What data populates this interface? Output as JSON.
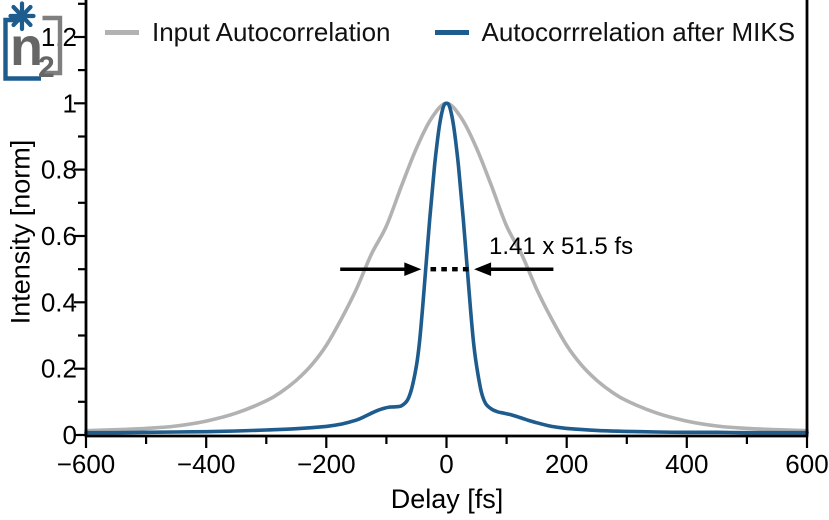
{
  "legend": {
    "items": [
      {
        "label": "Input Autocorrelation",
        "color": "#b2b2b2"
      },
      {
        "label": "Autocorrrelation after MIKS",
        "color": "#1e5c8e"
      }
    ]
  },
  "axes": {
    "x_label": "Delay [fs]",
    "y_label": "Intensity [norm]"
  },
  "annotation": {
    "text": "1.41 x 51.5 fs"
  },
  "logo": {
    "main": "n",
    "subscript": "2",
    "star_color": "#1e5c8e",
    "bracket_left_color": "#1e5c8e",
    "bracket_right_color": "#7f7f7f",
    "n_color": "#666666"
  },
  "chart_data": {
    "type": "line",
    "title": "",
    "xlabel": "Delay [fs]",
    "ylabel": "Intensity [norm]",
    "xlim": [
      -600,
      600
    ],
    "ylim": [
      0,
      1.31
    ],
    "grid": false,
    "legend_position": "top",
    "x_ticks": [
      -600,
      -400,
      -200,
      0,
      200,
      400,
      600
    ],
    "x_tick_labels": [
      "−600",
      "−400",
      "−200",
      "0",
      "200",
      "400",
      "600"
    ],
    "x_minor_ticks": [
      -500,
      -300,
      -100,
      100,
      300,
      500
    ],
    "y_ticks": [
      0,
      0.2,
      0.4,
      0.6,
      0.8,
      1.0,
      1.2
    ],
    "y_tick_labels": [
      "0",
      "0.2",
      "0.4",
      "0.6",
      "0.8",
      "1",
      "1.2"
    ],
    "y_minor_ticks": [
      0.1,
      0.3,
      0.5,
      0.7,
      0.9,
      1.1,
      1.3
    ],
    "series": [
      {
        "name": "Input Autocorrelation",
        "color": "#b2b2b2",
        "points": [
          [
            -600,
            0.013
          ],
          [
            -550,
            0.016
          ],
          [
            -500,
            0.02
          ],
          [
            -450,
            0.027
          ],
          [
            -400,
            0.042
          ],
          [
            -350,
            0.066
          ],
          [
            -300,
            0.103
          ],
          [
            -275,
            0.13
          ],
          [
            -250,
            0.165
          ],
          [
            -225,
            0.21
          ],
          [
            -200,
            0.27
          ],
          [
            -175,
            0.35
          ],
          [
            -150,
            0.44
          ],
          [
            -125,
            0.545
          ],
          [
            -100,
            0.63
          ],
          [
            -75,
            0.75
          ],
          [
            -50,
            0.865
          ],
          [
            -25,
            0.955
          ],
          [
            0,
            1.0
          ],
          [
            25,
            0.955
          ],
          [
            50,
            0.865
          ],
          [
            75,
            0.75
          ],
          [
            100,
            0.63
          ],
          [
            125,
            0.545
          ],
          [
            150,
            0.44
          ],
          [
            175,
            0.35
          ],
          [
            200,
            0.27
          ],
          [
            225,
            0.21
          ],
          [
            250,
            0.165
          ],
          [
            275,
            0.13
          ],
          [
            300,
            0.103
          ],
          [
            350,
            0.066
          ],
          [
            400,
            0.042
          ],
          [
            450,
            0.027
          ],
          [
            500,
            0.02
          ],
          [
            550,
            0.016
          ],
          [
            600,
            0.013
          ]
        ]
      },
      {
        "name": "Autocorrrelation after MIKS",
        "color": "#1e5c8e",
        "points": [
          [
            -600,
            0.007
          ],
          [
            -550,
            0.007
          ],
          [
            -500,
            0.008
          ],
          [
            -450,
            0.009
          ],
          [
            -400,
            0.01
          ],
          [
            -350,
            0.012
          ],
          [
            -300,
            0.015
          ],
          [
            -250,
            0.019
          ],
          [
            -200,
            0.026
          ],
          [
            -175,
            0.033
          ],
          [
            -150,
            0.045
          ],
          [
            -135,
            0.057
          ],
          [
            -120,
            0.07
          ],
          [
            -105,
            0.08
          ],
          [
            -95,
            0.084
          ],
          [
            -85,
            0.085
          ],
          [
            -75,
            0.088
          ],
          [
            -65,
            0.105
          ],
          [
            -58,
            0.14
          ],
          [
            -50,
            0.21
          ],
          [
            -45,
            0.28
          ],
          [
            -40,
            0.38
          ],
          [
            -36,
            0.47
          ],
          [
            -32,
            0.56
          ],
          [
            -28,
            0.65
          ],
          [
            -24,
            0.73
          ],
          [
            -20,
            0.81
          ],
          [
            -16,
            0.875
          ],
          [
            -12,
            0.93
          ],
          [
            -8,
            0.97
          ],
          [
            -4,
            0.995
          ],
          [
            0,
            1.0
          ],
          [
            4,
            0.995
          ],
          [
            8,
            0.97
          ],
          [
            12,
            0.93
          ],
          [
            16,
            0.875
          ],
          [
            20,
            0.81
          ],
          [
            24,
            0.73
          ],
          [
            28,
            0.65
          ],
          [
            32,
            0.56
          ],
          [
            36,
            0.47
          ],
          [
            40,
            0.38
          ],
          [
            45,
            0.28
          ],
          [
            50,
            0.21
          ],
          [
            58,
            0.13
          ],
          [
            65,
            0.095
          ],
          [
            75,
            0.078
          ],
          [
            85,
            0.07
          ],
          [
            95,
            0.066
          ],
          [
            105,
            0.062
          ],
          [
            120,
            0.054
          ],
          [
            135,
            0.045
          ],
          [
            150,
            0.037
          ],
          [
            175,
            0.026
          ],
          [
            200,
            0.02
          ],
          [
            250,
            0.014
          ],
          [
            300,
            0.011
          ],
          [
            350,
            0.009
          ],
          [
            400,
            0.008
          ],
          [
            450,
            0.008
          ],
          [
            500,
            0.007
          ],
          [
            550,
            0.007
          ],
          [
            600,
            0.007
          ]
        ]
      }
    ],
    "annotation": {
      "text": "1.41 x 51.5 fs",
      "y_level": 0.5,
      "left_arrow_fs": [
        -177,
        -42
      ],
      "right_arrow_fs": [
        178,
        46
      ],
      "dots_fs": [
        -22,
        -4,
        14,
        32
      ]
    }
  }
}
